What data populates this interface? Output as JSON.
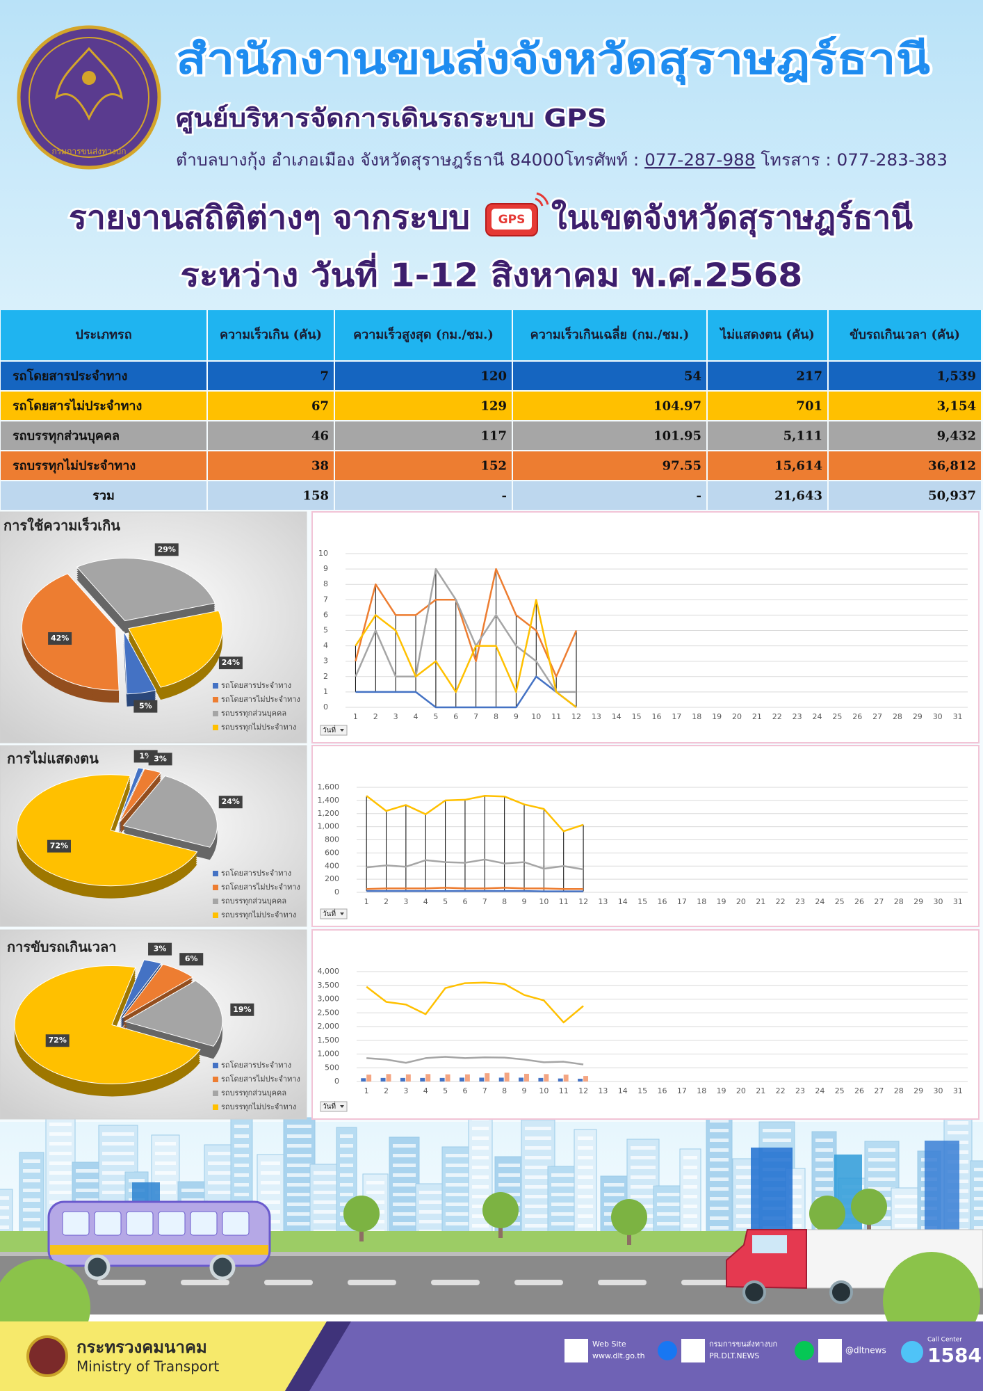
{
  "header": {
    "emblem_text": "กรมการขนส่งทางบก",
    "title": "สำนักงานขนส่งจังหวัดสุราษฎร์ธานี",
    "subtitle": "ศูนย์บริหารจัดการเดินรถระบบ GPS",
    "address": "ตำบลบางกุ้ง อำเภอเมือง จังหวัดสุราษฎร์ธานี 84000โทรศัพท์ : ",
    "phone": "077-287-988",
    "fax": " โทรสาร : 077-283-383"
  },
  "report": {
    "title_pre": "รายงานสถิติต่างๆ จากระบบ",
    "gps_icon": "GPS",
    "title_post": "ในเขตจังหวัดสุราษฎร์ธานี",
    "period": "ระหว่าง วันที่ 1-12 สิงหาคม พ.ศ.2568"
  },
  "table": {
    "headers": [
      "ประเภทรถ",
      "ความเร็วเกิน (คัน)",
      "ความเร็วสูงสุด (กม./ชม.)",
      "ความเร็วเกินเฉลี่ย (กม./ชม.)",
      "ไม่แสดงตน (คัน)",
      "ขับรถเกินเวลา (คัน)"
    ],
    "rows": [
      [
        "รถโดยสารประจำทาง",
        "7",
        "120",
        "54",
        "217",
        "1,539"
      ],
      [
        "รถโดยสารไม่ประจำทาง",
        "67",
        "129",
        "104.97",
        "701",
        "3,154"
      ],
      [
        "รถบรรทุกส่วนบุคคล",
        "46",
        "117",
        "101.95",
        "5,111",
        "9,432"
      ],
      [
        "รถบรรทุกไม่ประจำทาง",
        "38",
        "152",
        "97.55",
        "15,614",
        "36,812"
      ],
      [
        "รวม",
        "158",
        "-",
        "-",
        "21,643",
        "50,937"
      ]
    ]
  },
  "chart_data": [
    {
      "type": "pie",
      "title": "การใช้ความเร็วเกิน",
      "categories": [
        "รถโดยสารประจำทาง",
        "รถโดยสารไม่ประจำทาง",
        "รถบรรทุกส่วนบุคคล",
        "รถบรรทุกไม่ประจำทาง"
      ],
      "values": [
        5,
        42,
        29,
        24
      ],
      "value_labels": [
        "5%",
        "42%",
        "29%",
        "24%"
      ],
      "colors": [
        "#4472c4",
        "#ed7d31",
        "#a5a5a5",
        "#ffc000"
      ],
      "legend": "bottom-right"
    },
    {
      "type": "line",
      "categories": [
        1,
        2,
        3,
        4,
        5,
        6,
        7,
        8,
        9,
        10,
        11,
        12,
        13,
        14,
        15,
        16,
        17,
        18,
        19,
        20,
        21,
        22,
        23,
        24,
        25,
        26,
        27,
        28,
        29,
        30,
        31
      ],
      "ylim": [
        0,
        10
      ],
      "yticks": [
        0,
        1,
        2,
        3,
        4,
        5,
        6,
        7,
        8,
        9,
        10
      ],
      "grid": true,
      "drop_lines": true,
      "filter_label": "วันที่",
      "series": [
        {
          "color": "#4472c4",
          "values": [
            1,
            1,
            1,
            1,
            0,
            0,
            0,
            0,
            0,
            2,
            1,
            0,
            null,
            null,
            null,
            null,
            null,
            null,
            null,
            null,
            null,
            null,
            null,
            null,
            null,
            null,
            null,
            null,
            null,
            null,
            null
          ]
        },
        {
          "color": "#ed7d31",
          "values": [
            3,
            8,
            6,
            6,
            7,
            7,
            3,
            9,
            6,
            5,
            2,
            5,
            null,
            null,
            null,
            null,
            null,
            null,
            null,
            null,
            null,
            null,
            null,
            null,
            null,
            null,
            null,
            null,
            null,
            null,
            null
          ]
        },
        {
          "color": "#a5a5a5",
          "values": [
            2,
            5,
            2,
            2,
            9,
            7,
            4,
            6,
            4,
            3,
            1,
            1,
            null,
            null,
            null,
            null,
            null,
            null,
            null,
            null,
            null,
            null,
            null,
            null,
            null,
            null,
            null,
            null,
            null,
            null,
            null
          ]
        },
        {
          "color": "#ffc000",
          "values": [
            4,
            6,
            5,
            2,
            3,
            1,
            4,
            4,
            1,
            7,
            1,
            0,
            null,
            null,
            null,
            null,
            null,
            null,
            null,
            null,
            null,
            null,
            null,
            null,
            null,
            null,
            null,
            null,
            null,
            null,
            null
          ]
        }
      ]
    },
    {
      "type": "pie",
      "title": "การไม่แสดงตน",
      "categories": [
        "รถโดยสารประจำทาง",
        "รถโดยสารไม่ประจำทาง",
        "รถบรรทุกส่วนบุคคล",
        "รถบรรทุกไม่ประจำทาง"
      ],
      "values": [
        1,
        3,
        24,
        72
      ],
      "value_labels": [
        "1%",
        "3%",
        "24%",
        "72%"
      ],
      "colors": [
        "#4472c4",
        "#ed7d31",
        "#a5a5a5",
        "#ffc000"
      ],
      "legend": "bottom-right"
    },
    {
      "type": "line",
      "categories": [
        1,
        2,
        3,
        4,
        5,
        6,
        7,
        8,
        9,
        10,
        11,
        12,
        13,
        14,
        15,
        16,
        17,
        18,
        19,
        20,
        21,
        22,
        23,
        24,
        25,
        26,
        27,
        28,
        29,
        30,
        31
      ],
      "ylim": [
        0,
        1600
      ],
      "yticks": [
        0,
        200,
        400,
        600,
        800,
        {
          "value": 1000,
          "label": "1,000"
        },
        {
          "value": 1200,
          "label": "1,200"
        },
        {
          "value": 1400,
          "label": "1,400"
        },
        {
          "value": 1600,
          "label": "1,600"
        }
      ],
      "grid": true,
      "drop_lines": true,
      "filter_label": "วันที่",
      "series": [
        {
          "color": "#4472c4",
          "values": [
            20,
            20,
            20,
            20,
            20,
            20,
            20,
            20,
            20,
            15,
            15,
            15,
            null,
            null,
            null,
            null,
            null,
            null,
            null,
            null,
            null,
            null,
            null,
            null,
            null,
            null,
            null,
            null,
            null,
            null,
            null
          ]
        },
        {
          "color": "#ed7d31",
          "values": [
            50,
            60,
            60,
            60,
            70,
            60,
            60,
            70,
            60,
            60,
            50,
            50,
            null,
            null,
            null,
            null,
            null,
            null,
            null,
            null,
            null,
            null,
            null,
            null,
            null,
            null,
            null,
            null,
            null,
            null,
            null
          ]
        },
        {
          "color": "#a5a5a5",
          "values": [
            380,
            410,
            390,
            490,
            460,
            450,
            500,
            440,
            460,
            360,
            400,
            350,
            null,
            null,
            null,
            null,
            null,
            null,
            null,
            null,
            null,
            null,
            null,
            null,
            null,
            null,
            null,
            null,
            null,
            null,
            null
          ]
        },
        {
          "color": "#ffc000",
          "values": [
            1470,
            1240,
            1330,
            1190,
            1400,
            1410,
            1470,
            1460,
            1340,
            1270,
            930,
            1030,
            null,
            null,
            null,
            null,
            null,
            null,
            null,
            null,
            null,
            null,
            null,
            null,
            null,
            null,
            null,
            null,
            null,
            null,
            null
          ]
        }
      ]
    },
    {
      "type": "pie",
      "title": "การขับรถเกินเวลา",
      "categories": [
        "รถโดยสารประจำทาง",
        "รถโดยสารไม่ประจำทาง",
        "รถบรรทุกส่วนบุคคล",
        "รถบรรทุกไม่ประจำทาง"
      ],
      "values": [
        3,
        6,
        19,
        72
      ],
      "value_labels": [
        "3%",
        "6%",
        "19%",
        "72%"
      ],
      "colors": [
        "#4472c4",
        "#ed7d31",
        "#a5a5a5",
        "#ffc000"
      ],
      "legend": "bottom-right"
    },
    {
      "type": "line",
      "categories": [
        1,
        2,
        3,
        4,
        5,
        6,
        7,
        8,
        9,
        10,
        11,
        12,
        13,
        14,
        15,
        16,
        17,
        18,
        19,
        20,
        21,
        22,
        23,
        24,
        25,
        26,
        27,
        28,
        29,
        30,
        31
      ],
      "ylim": [
        0,
        4000
      ],
      "yticks": [
        0,
        500,
        {
          "value": 1000,
          "label": "1,000"
        },
        {
          "value": 1500,
          "label": "1,500"
        },
        {
          "value": 2000,
          "label": "2,000"
        },
        {
          "value": 2500,
          "label": "2,500"
        },
        {
          "value": 3000,
          "label": "3,000"
        },
        {
          "value": 3500,
          "label": "3,500"
        },
        {
          "value": 4000,
          "label": "4,000"
        }
      ],
      "grid": true,
      "drop_lines": false,
      "filter_label": "วันที่",
      "series": [
        {
          "type": "bar",
          "color": "#4472c4",
          "values": [
            120,
            130,
            130,
            130,
            130,
            140,
            140,
            140,
            140,
            130,
            110,
            100,
            null,
            null,
            null,
            null,
            null,
            null,
            null,
            null,
            null,
            null,
            null,
            null,
            null,
            null,
            null,
            null,
            null,
            null,
            null
          ]
        },
        {
          "type": "bar",
          "color": "#f4a582",
          "values": [
            250,
            270,
            260,
            270,
            260,
            260,
            300,
            320,
            280,
            270,
            250,
            200,
            null,
            null,
            null,
            null,
            null,
            null,
            null,
            null,
            null,
            null,
            null,
            null,
            null,
            null,
            null,
            null,
            null,
            null,
            null
          ]
        },
        {
          "color": "#a5a5a5",
          "values": [
            850,
            800,
            680,
            850,
            900,
            850,
            880,
            870,
            800,
            700,
            720,
            620,
            null,
            null,
            null,
            null,
            null,
            null,
            null,
            null,
            null,
            null,
            null,
            null,
            null,
            null,
            null,
            null,
            null,
            null,
            null
          ]
        },
        {
          "color": "#ffc000",
          "values": [
            3450,
            2900,
            2800,
            2450,
            3400,
            3580,
            3600,
            3550,
            3150,
            2950,
            2150,
            2750,
            null,
            null,
            null,
            null,
            null,
            null,
            null,
            null,
            null,
            null,
            null,
            null,
            null,
            null,
            null,
            null,
            null,
            null,
            null
          ]
        }
      ]
    }
  ],
  "footer": {
    "ministry_th": "กระทรวงคมนาคม",
    "ministry_en": "Ministry of Transport",
    "website_label": "Web Site",
    "website": "www.dlt.go.th",
    "department": "กรมการขนส่งทางบก",
    "facebook": "PR.DLT.NEWS",
    "line": "@dltnews",
    "call_center": "Call Center",
    "hotline": "1584"
  }
}
